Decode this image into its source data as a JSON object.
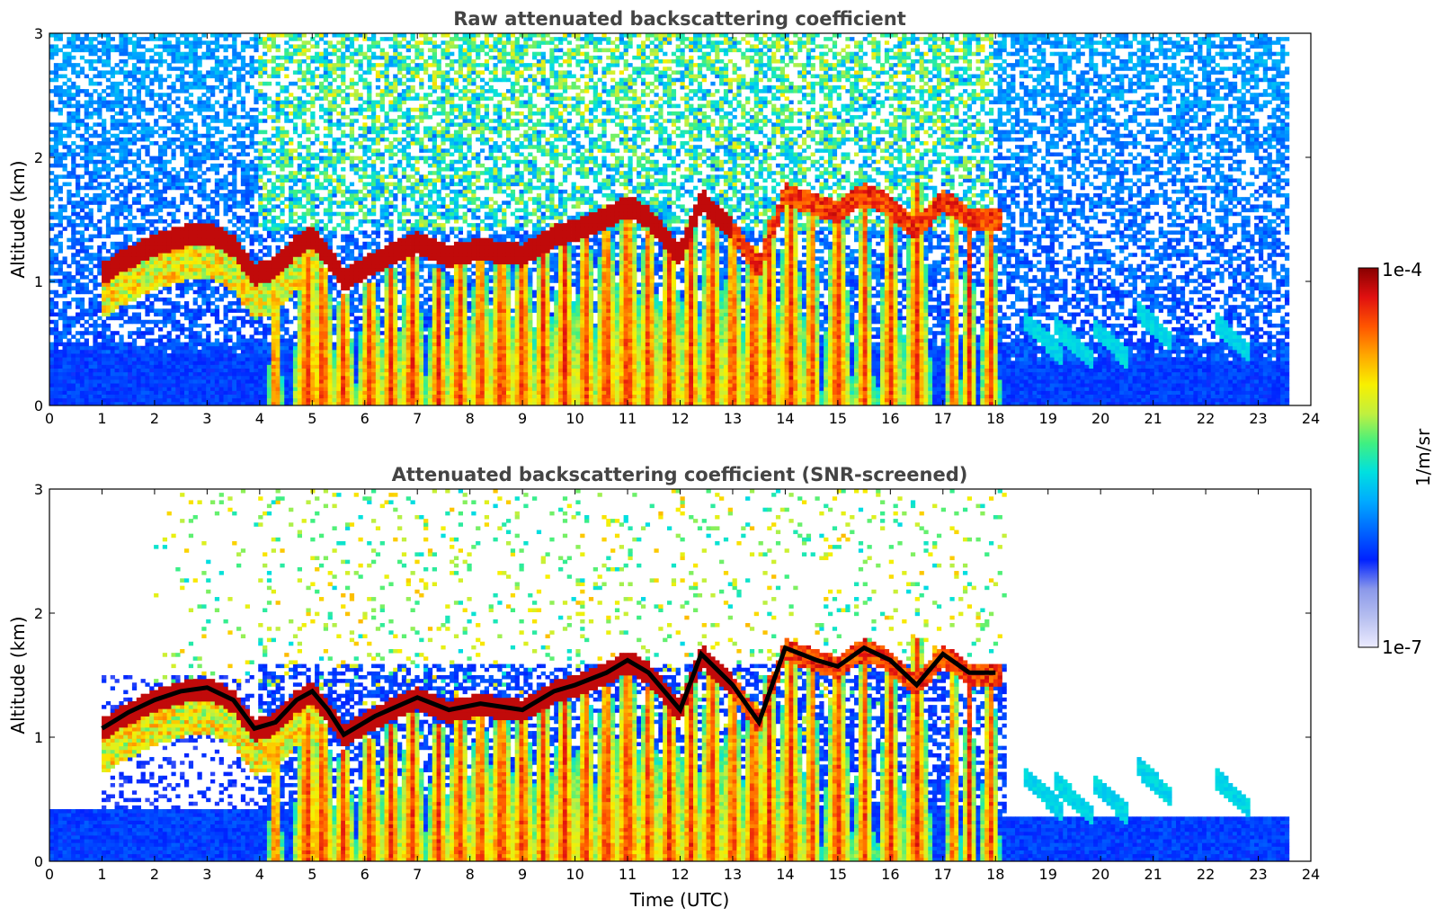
{
  "chart_data": [
    {
      "type": "heatmap",
      "title": "Raw attenuated backscattering coefficient",
      "xlabel": "",
      "ylabel": "Altitude (km)",
      "xlim": [
        0,
        24
      ],
      "ylim": [
        0,
        3
      ],
      "x_ticks": [
        "0",
        "1",
        "2",
        "3",
        "4",
        "5",
        "6",
        "7",
        "8",
        "9",
        "10",
        "11",
        "12",
        "13",
        "14",
        "15",
        "16",
        "17",
        "18",
        "19",
        "20",
        "21",
        "22",
        "23",
        "24"
      ],
      "y_ticks": [
        "0",
        "1",
        "2",
        "3"
      ],
      "data_end_time": 23.55,
      "noise_screened": false
    },
    {
      "type": "heatmap",
      "title": "Attenuated backscattering coefficient (SNR-screened)",
      "xlabel": "Time (UTC)",
      "ylabel": "Altitude (km)",
      "xlim": [
        0,
        24
      ],
      "ylim": [
        0,
        3
      ],
      "x_ticks": [
        "0",
        "1",
        "2",
        "3",
        "4",
        "5",
        "6",
        "7",
        "8",
        "9",
        "10",
        "11",
        "12",
        "13",
        "14",
        "15",
        "16",
        "17",
        "18",
        "19",
        "20",
        "21",
        "22",
        "23",
        "24"
      ],
      "y_ticks": [
        "0",
        "1",
        "2",
        "3"
      ],
      "data_end_time": 23.55,
      "noise_screened": true
    }
  ],
  "scene": {
    "cloud_top_km": [
      [
        1.0,
        1.15
      ],
      [
        1.5,
        1.28
      ],
      [
        2.0,
        1.38
      ],
      [
        2.5,
        1.45
      ],
      [
        3.0,
        1.48
      ],
      [
        3.5,
        1.38
      ],
      [
        3.9,
        1.15
      ],
      [
        4.3,
        1.2
      ],
      [
        4.7,
        1.38
      ],
      [
        5.0,
        1.45
      ],
      [
        5.3,
        1.3
      ],
      [
        5.6,
        1.1
      ],
      [
        6.2,
        1.25
      ],
      [
        7.0,
        1.4
      ],
      [
        7.6,
        1.3
      ],
      [
        8.2,
        1.35
      ],
      [
        9.0,
        1.3
      ],
      [
        9.6,
        1.45
      ],
      [
        10.0,
        1.5
      ],
      [
        10.6,
        1.6
      ],
      [
        11.0,
        1.7
      ],
      [
        11.4,
        1.6
      ],
      [
        12.0,
        1.3
      ],
      [
        12.4,
        1.75
      ],
      [
        13.0,
        1.5
      ],
      [
        13.5,
        1.2
      ],
      [
        14.0,
        1.8
      ],
      [
        14.6,
        1.7
      ],
      [
        15.0,
        1.65
      ],
      [
        15.5,
        1.8
      ],
      [
        16.0,
        1.7
      ],
      [
        16.5,
        1.5
      ],
      [
        17.0,
        1.75
      ],
      [
        17.5,
        1.6
      ],
      [
        18.0,
        1.6
      ]
    ],
    "fall_streaks": [
      [
        4.3,
        1.1,
        0.3
      ],
      [
        4.9,
        1.2,
        0.6
      ],
      [
        5.2,
        1.1,
        0.6
      ],
      [
        5.6,
        0.9,
        0.5
      ],
      [
        6.1,
        1.0,
        0.6
      ],
      [
        6.5,
        1.1,
        0.5
      ],
      [
        6.9,
        1.2,
        0.6
      ],
      [
        7.4,
        1.1,
        0.5
      ],
      [
        7.8,
        1.2,
        0.6
      ],
      [
        8.2,
        1.3,
        0.5
      ],
      [
        8.6,
        1.2,
        0.7
      ],
      [
        9.0,
        1.2,
        0.6
      ],
      [
        9.4,
        1.3,
        0.5
      ],
      [
        9.8,
        1.3,
        0.6
      ],
      [
        10.2,
        1.4,
        0.5
      ],
      [
        10.6,
        1.4,
        0.6
      ],
      [
        11.0,
        1.5,
        0.7
      ],
      [
        11.4,
        1.4,
        0.5
      ],
      [
        11.8,
        1.3,
        0.6
      ],
      [
        12.2,
        1.5,
        0.5
      ],
      [
        12.6,
        1.6,
        0.6
      ],
      [
        13.0,
        1.4,
        0.5
      ],
      [
        13.4,
        1.3,
        0.6
      ],
      [
        13.7,
        1.5,
        0.5
      ],
      [
        14.1,
        1.7,
        0.6
      ],
      [
        14.5,
        1.6,
        0.4
      ],
      [
        15.0,
        1.6,
        0.6
      ],
      [
        15.5,
        1.7,
        0.4
      ],
      [
        16.0,
        1.6,
        0.5
      ],
      [
        16.5,
        1.8,
        0.6
      ],
      [
        17.2,
        1.6,
        0.3
      ],
      [
        17.5,
        1.5,
        0.3
      ],
      [
        17.9,
        1.6,
        0.4
      ]
    ],
    "low_plumes": [
      [
        18.9,
        0.55
      ],
      [
        19.5,
        0.5
      ],
      [
        20.2,
        0.5
      ],
      [
        21.0,
        0.65
      ],
      [
        22.5,
        0.55
      ]
    ]
  },
  "colorbar": {
    "label": "1/m/sr",
    "max_label": "1e-4",
    "min_label": "1e-7",
    "colormap": [
      "#ecebff",
      "#b8c0f0",
      "#8a98ea",
      "#0022ff",
      "#0066ff",
      "#00aaff",
      "#00e0e0",
      "#40f080",
      "#c0f040",
      "#f8f000",
      "#ffa800",
      "#ff5500",
      "#e01010",
      "#880000"
    ]
  }
}
